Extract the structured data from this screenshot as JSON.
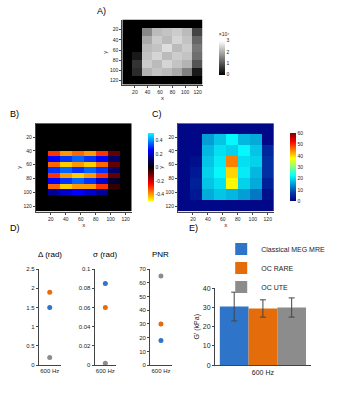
{
  "chart_data": [
    {
      "type": "heatmap",
      "title": "A)",
      "xlabel": "x",
      "ylabel": "y",
      "color": "gray",
      "x": [
        8,
        24,
        40,
        56,
        72,
        88,
        104,
        120
      ],
      "y": [
        8,
        24,
        40,
        56,
        72,
        88,
        104,
        120
      ],
      "z": [
        [
          0,
          0,
          0,
          0,
          0,
          0,
          0,
          0
        ],
        [
          0,
          0,
          1.6,
          2.2,
          2.3,
          2.4,
          2.2,
          0.8
        ],
        [
          0,
          0,
          2.0,
          2.4,
          2.2,
          2.5,
          2.3,
          1.2
        ],
        [
          0,
          0,
          2.2,
          2.3,
          2.6,
          2.2,
          2.4,
          1.4
        ],
        [
          0,
          0.3,
          2.3,
          2.5,
          2.2,
          2.4,
          2.3,
          1.3
        ],
        [
          0,
          0.6,
          2.4,
          2.2,
          2.5,
          2.3,
          2.1,
          1.0
        ],
        [
          0,
          0.5,
          2.1,
          2.3,
          2.2,
          2.0,
          1.5,
          0.3
        ],
        [
          0,
          0,
          0,
          0,
          0,
          0,
          0,
          0
        ]
      ],
      "xlim": [
        0,
        128
      ],
      "ylim": [
        128,
        0
      ],
      "xticks": [
        20,
        40,
        60,
        80,
        100,
        120
      ],
      "yticks": [
        20,
        40,
        60,
        80,
        100,
        120
      ],
      "colorbar": {
        "title": "×10⁴",
        "range": [
          0,
          3
        ],
        "ticks": [
          0,
          1,
          2,
          3
        ]
      }
    },
    {
      "type": "heatmap",
      "title": "B)",
      "xlabel": "x",
      "ylabel": "y",
      "color": "diverging",
      "x": [
        8,
        24,
        40,
        56,
        72,
        88,
        104,
        120
      ],
      "y": [
        4,
        12,
        20,
        28,
        36,
        44,
        52,
        60,
        68,
        76,
        84,
        92,
        100,
        108,
        116,
        124
      ],
      "z": [
        [
          0,
          0,
          0,
          0,
          0,
          0,
          0,
          0
        ],
        [
          0,
          0,
          0,
          0,
          0,
          0,
          0,
          0
        ],
        [
          0,
          0,
          0,
          0,
          0,
          0,
          0,
          0
        ],
        [
          0,
          0,
          0,
          0,
          0,
          0,
          0,
          0
        ],
        [
          0,
          0,
          0,
          0,
          0,
          0,
          0,
          0
        ],
        [
          0,
          -0.3,
          -0.4,
          -0.35,
          -0.4,
          -0.3,
          -0.1,
          0
        ],
        [
          0,
          0.25,
          0.3,
          0.35,
          0.3,
          0.25,
          0.1,
          0
        ],
        [
          0,
          -0.35,
          -0.45,
          -0.4,
          -0.45,
          -0.35,
          -0.1,
          0
        ],
        [
          0,
          0.3,
          0.35,
          0.3,
          0.35,
          0.3,
          0.1,
          0
        ],
        [
          0,
          -0.3,
          -0.4,
          -0.45,
          -0.4,
          -0.3,
          -0.1,
          0
        ],
        [
          0,
          0.25,
          0.3,
          0.35,
          0.3,
          0.2,
          0.05,
          0
        ],
        [
          0,
          -0.35,
          -0.45,
          -0.4,
          -0.4,
          -0.3,
          -0.05,
          0
        ],
        [
          0,
          0.15,
          0.2,
          0.25,
          0.2,
          0.15,
          0,
          0
        ],
        [
          0,
          0,
          0,
          0,
          0,
          0,
          0,
          0
        ],
        [
          0,
          0,
          0,
          0,
          0,
          0,
          0,
          0
        ],
        [
          0,
          0,
          0,
          0,
          0,
          0,
          0,
          0
        ]
      ],
      "xlim": [
        0,
        128
      ],
      "ylim": [
        128,
        0
      ],
      "xticks": [
        20,
        40,
        60,
        80,
        100,
        120
      ],
      "yticks": [
        20,
        40,
        60,
        80,
        100,
        120
      ],
      "colorbar": {
        "range": [
          -0.5,
          0.5
        ],
        "ticks": [
          -0.4,
          -0.2,
          0,
          0.2,
          0.4
        ]
      }
    },
    {
      "type": "heatmap",
      "title": "C)",
      "xlabel": "x",
      "ylabel": "y",
      "color": "jet",
      "x": [
        8,
        24,
        40,
        56,
        72,
        88,
        104,
        120
      ],
      "y": [
        8,
        24,
        40,
        56,
        72,
        88,
        104,
        120
      ],
      "z": [
        [
          1,
          1,
          1,
          1,
          1,
          1,
          1,
          1
        ],
        [
          1,
          1,
          15,
          18,
          22,
          17,
          16,
          1
        ],
        [
          1,
          1,
          17,
          20,
          19,
          22,
          18,
          5
        ],
        [
          1,
          2,
          18,
          21,
          45,
          20,
          19,
          6
        ],
        [
          1,
          3,
          19,
          22,
          40,
          21,
          17,
          6
        ],
        [
          1,
          4,
          18,
          20,
          38,
          19,
          16,
          4
        ],
        [
          1,
          3,
          16,
          18,
          17,
          15,
          12,
          2
        ],
        [
          1,
          1,
          1,
          1,
          1,
          1,
          1,
          1
        ]
      ],
      "xlim": [
        0,
        128
      ],
      "ylim": [
        128,
        0
      ],
      "xticks": [
        20,
        40,
        60,
        80,
        100,
        120
      ],
      "yticks": [
        20,
        40,
        60,
        80,
        100,
        120
      ],
      "colorbar": {
        "range": [
          0,
          60
        ],
        "ticks": [
          0,
          10,
          20,
          30,
          40,
          50,
          60
        ]
      }
    },
    {
      "type": "scatter",
      "title": "D)",
      "categories": [
        "600 Hz"
      ],
      "panels": [
        {
          "title": "Δ (rad)",
          "ylim": [
            0,
            2.5
          ],
          "yticks": [
            0,
            0.5,
            1,
            1.5,
            2,
            2.5
          ],
          "series": [
            {
              "color": "#2e75c9",
              "values": [
                1.5
              ]
            },
            {
              "color": "#e46c0a",
              "values": [
                1.9
              ]
            },
            {
              "color": "#8c8c8c",
              "values": [
                0.2
              ]
            }
          ]
        },
        {
          "title": "σ (rad)",
          "ylim": [
            0,
            0.1
          ],
          "yticks": [
            0,
            0.02,
            0.04,
            0.06,
            0.08,
            0.1
          ],
          "series": [
            {
              "color": "#2e75c9",
              "values": [
                0.085
              ]
            },
            {
              "color": "#e46c0a",
              "values": [
                0.06
              ]
            },
            {
              "color": "#8c8c8c",
              "values": [
                0.002
              ]
            }
          ]
        },
        {
          "title": "PNR",
          "ylim": [
            0,
            70
          ],
          "yticks": [
            0,
            10,
            20,
            30,
            40,
            50,
            60,
            70
          ],
          "series": [
            {
              "color": "#2e75c9",
              "values": [
                18
              ]
            },
            {
              "color": "#e46c0a",
              "values": [
                30
              ]
            },
            {
              "color": "#8c8c8c",
              "values": [
                65
              ]
            }
          ]
        }
      ]
    },
    {
      "type": "bar",
      "title": "E)",
      "categories": [
        "600 Hz"
      ],
      "ylabel": "G' (kPa)",
      "ylim": [
        0,
        40
      ],
      "yticks": [
        0,
        10,
        20,
        30,
        40
      ],
      "legend": "top",
      "series": [
        {
          "name": "Classical MEG MRE",
          "color": "#2e75c9",
          "values": [
            30.5
          ],
          "error": [
            7.5
          ]
        },
        {
          "name": "OC RARE",
          "color": "#e46c0a",
          "values": [
            29.5
          ],
          "error": [
            4.5
          ]
        },
        {
          "name": "OC UTE",
          "color": "#8c8c8c",
          "values": [
            30
          ],
          "error": [
            5
          ]
        }
      ]
    }
  ]
}
